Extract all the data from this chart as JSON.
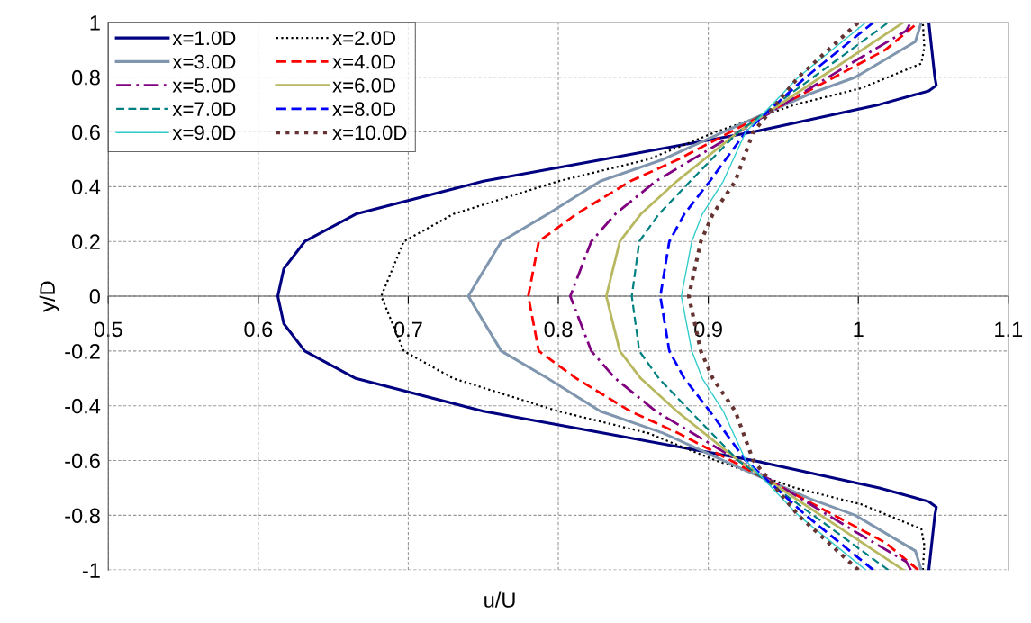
{
  "chart_data": {
    "type": "line",
    "xlabel": "u/U",
    "ylabel": "y/D",
    "xlim": [
      0.5,
      1.1
    ],
    "xticks": [
      0.5,
      0.6,
      0.7,
      0.8,
      0.9,
      1,
      1.1
    ],
    "ylim": [
      -1,
      1
    ],
    "yticks": [
      -1,
      -0.8,
      -0.6,
      -0.4,
      -0.2,
      0,
      0.2,
      0.4,
      0.6,
      0.8,
      1
    ],
    "grid": true,
    "legend": "top left",
    "series": [
      {
        "name": "x=1.0D",
        "color": "#000080",
        "line_style": "solid",
        "x": [
          1.047,
          1.051,
          1.052,
          1.047,
          1.014,
          0.93,
          0.83,
          0.75,
          0.665,
          0.631,
          0.617,
          0.613,
          0.617,
          0.631,
          0.665,
          0.75,
          0.83,
          0.93,
          1.014,
          1.047,
          1.052,
          1.051,
          1.047
        ],
        "values": [
          -1,
          -0.8,
          -0.77,
          -0.75,
          -0.7,
          -0.6,
          -0.5,
          -0.42,
          -0.3,
          -0.2,
          -0.1,
          0,
          0.1,
          0.2,
          0.3,
          0.42,
          0.5,
          0.6,
          0.7,
          0.75,
          0.77,
          0.8,
          1
        ]
      },
      {
        "name": "x=2.0D",
        "color": "#000000",
        "line_style": "dotted",
        "x": [
          1.043,
          1.044,
          1.042,
          1.002,
          0.958,
          0.905,
          0.86,
          0.8,
          0.73,
          0.697,
          0.682,
          0.697,
          0.73,
          0.8,
          0.86,
          0.905,
          0.958,
          1.002,
          1.042,
          1.044,
          1.043
        ],
        "values": [
          -1,
          -0.91,
          -0.85,
          -0.76,
          -0.7,
          -0.6,
          -0.5,
          -0.42,
          -0.3,
          -0.2,
          0,
          0.2,
          0.3,
          0.42,
          0.5,
          0.6,
          0.7,
          0.76,
          0.85,
          0.91,
          1
        ]
      },
      {
        "name": "x=3.0D",
        "color": "#7f96ae",
        "line_style": "solid",
        "x": [
          1.042,
          1.038,
          0.998,
          0.968,
          0.91,
          0.87,
          0.828,
          0.793,
          0.762,
          0.74,
          0.762,
          0.793,
          0.828,
          0.87,
          0.91,
          0.968,
          0.998,
          1.038,
          1.042
        ],
        "values": [
          -1,
          -0.93,
          -0.8,
          -0.74,
          -0.6,
          -0.5,
          -0.42,
          -0.3,
          -0.2,
          0,
          0.2,
          0.3,
          0.42,
          0.5,
          0.6,
          0.74,
          0.8,
          0.93,
          1
        ]
      },
      {
        "name": "x=4.0D",
        "color": "#ff0000",
        "line_style": "dashed",
        "x": [
          1.04,
          1.018,
          0.984,
          0.915,
          0.88,
          0.848,
          0.812,
          0.787,
          0.78,
          0.787,
          0.812,
          0.848,
          0.88,
          0.915,
          0.984,
          1.018,
          1.04
        ],
        "values": [
          -1,
          -0.9,
          -0.8,
          -0.6,
          -0.5,
          -0.42,
          -0.3,
          -0.2,
          0,
          0.2,
          0.3,
          0.42,
          0.5,
          0.6,
          0.8,
          0.9,
          1
        ]
      },
      {
        "name": "x=5.0D",
        "color": "#800080",
        "line_style": "dashdot",
        "x": [
          1.035,
          1.032,
          0.998,
          0.92,
          0.865,
          0.838,
          0.822,
          0.808,
          0.822,
          0.838,
          0.865,
          0.92,
          0.998,
          1.032,
          1.035
        ],
        "values": [
          -1,
          -0.97,
          -0.86,
          -0.6,
          -0.42,
          -0.3,
          -0.2,
          0,
          0.2,
          0.3,
          0.42,
          0.6,
          0.86,
          0.97,
          1
        ]
      },
      {
        "name": "x=6.0D",
        "color": "#b8b860",
        "line_style": "solid",
        "x": [
          1.03,
          0.975,
          0.92,
          0.879,
          0.855,
          0.841,
          0.832,
          0.841,
          0.855,
          0.879,
          0.92,
          0.975,
          1.03
        ],
        "values": [
          -1,
          -0.8,
          -0.6,
          -0.42,
          -0.3,
          -0.2,
          0,
          0.2,
          0.3,
          0.42,
          0.6,
          0.8,
          1
        ]
      },
      {
        "name": "x=7.0D",
        "color": "#008080",
        "line_style": "dashed",
        "x": [
          1.02,
          0.97,
          0.92,
          0.888,
          0.867,
          0.854,
          0.849,
          0.854,
          0.867,
          0.888,
          0.92,
          0.97,
          1.02
        ],
        "values": [
          -1,
          -0.8,
          -0.6,
          -0.42,
          -0.3,
          -0.2,
          0,
          0.2,
          0.3,
          0.42,
          0.6,
          0.8,
          1
        ]
      },
      {
        "name": "x=8.0D",
        "color": "#0000ff",
        "line_style": "dashed",
        "x": [
          1.01,
          0.965,
          0.925,
          0.901,
          0.884,
          0.874,
          0.868,
          0.874,
          0.884,
          0.901,
          0.925,
          0.965,
          1.01
        ],
        "values": [
          -1,
          -0.8,
          -0.6,
          -0.42,
          -0.3,
          -0.2,
          0,
          0.2,
          0.3,
          0.42,
          0.6,
          0.8,
          1
        ]
      },
      {
        "name": "x=9.0D",
        "color": "#33cccc",
        "line_style": "solid",
        "x": [
          1.005,
          0.96,
          0.925,
          0.91,
          0.896,
          0.889,
          0.882,
          0.889,
          0.896,
          0.91,
          0.925,
          0.96,
          1.005
        ],
        "values": [
          -1,
          -0.8,
          -0.6,
          -0.42,
          -0.3,
          -0.2,
          0,
          0.2,
          0.3,
          0.42,
          0.6,
          0.8,
          1
        ]
      },
      {
        "name": "x=10.0D",
        "color": "#663333",
        "line_style": "dotted",
        "x": [
          1.0,
          0.96,
          0.93,
          0.918,
          0.903,
          0.895,
          0.887,
          0.895,
          0.903,
          0.918,
          0.93,
          0.96,
          1.0
        ],
        "values": [
          -1,
          -0.8,
          -0.6,
          -0.42,
          -0.3,
          -0.2,
          0,
          0.2,
          0.3,
          0.42,
          0.6,
          0.8,
          1
        ]
      }
    ]
  }
}
